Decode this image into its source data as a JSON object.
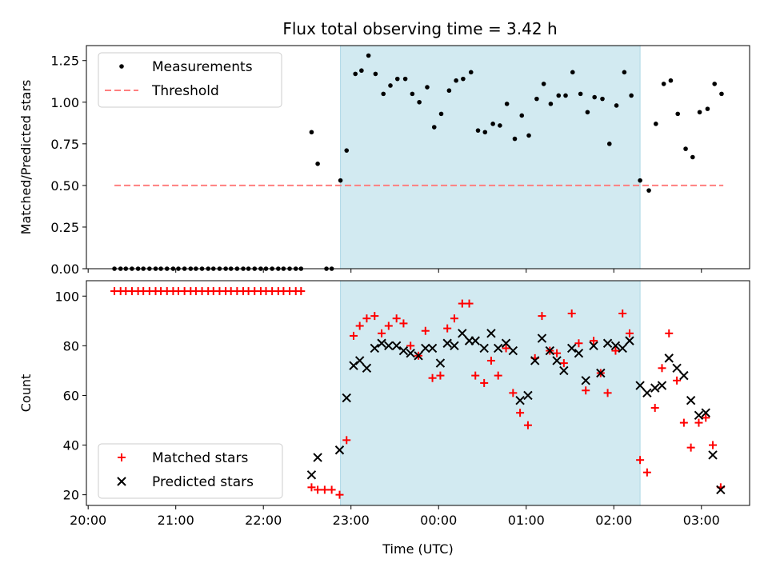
{
  "title": "Flux total observing time = 3.42 h",
  "chart_data": [
    {
      "type": "scatter",
      "panel": "top",
      "ylabel": "Matched/Predicted stars",
      "xlabel": "",
      "ylim": [
        0,
        1.34
      ],
      "y_ticks": [
        0.0,
        0.25,
        0.5,
        0.75,
        1.0,
        1.25
      ],
      "y_tick_labels": [
        "0.00",
        "0.25",
        "0.50",
        "0.75",
        "1.00",
        "1.25"
      ],
      "x_ticks_hours": [
        20,
        21,
        22,
        23,
        24,
        25,
        26,
        27
      ],
      "shaded_interval_hours": [
        22.88,
        26.3
      ],
      "shade_color": "#add8e6",
      "legend": {
        "placement": "top-left",
        "entries": [
          {
            "label": "Measurements",
            "marker": "dot",
            "color": "#000000"
          },
          {
            "label": "Threshold",
            "marker": "dashed-line",
            "color": "#ff7f7f"
          }
        ]
      },
      "threshold": {
        "value": 0.5,
        "x_range_hours": [
          20.3,
          27.25
        ],
        "color": "#ff7f7f"
      },
      "series": [
        {
          "name": "Measurements",
          "color": "#000000",
          "x": [
            20.3,
            20.37,
            20.43,
            20.5,
            20.57,
            20.63,
            20.7,
            20.77,
            20.83,
            20.9,
            20.97,
            21.03,
            21.1,
            21.17,
            21.23,
            21.3,
            21.37,
            21.43,
            21.5,
            21.57,
            21.63,
            21.7,
            21.77,
            21.83,
            21.9,
            21.97,
            22.03,
            22.1,
            22.17,
            22.23,
            22.3,
            22.37,
            22.43,
            22.55,
            22.62,
            22.72,
            22.78,
            22.88,
            22.95,
            23.05,
            23.12,
            23.2,
            23.28,
            23.37,
            23.45,
            23.53,
            23.62,
            23.7,
            23.78,
            23.87,
            23.95,
            24.03,
            24.12,
            24.2,
            24.28,
            24.37,
            24.45,
            24.53,
            24.62,
            24.7,
            24.78,
            24.87,
            24.95,
            25.03,
            25.12,
            25.2,
            25.28,
            25.37,
            25.45,
            25.53,
            25.62,
            25.7,
            25.78,
            25.87,
            25.95,
            26.03,
            26.12,
            26.2,
            26.3,
            26.4,
            26.48,
            26.57,
            26.65,
            26.73,
            26.82,
            26.9,
            26.98,
            27.07,
            27.15,
            27.23
          ],
          "values": [
            0,
            0,
            0,
            0,
            0,
            0,
            0,
            0,
            0,
            0,
            0,
            0,
            0,
            0,
            0,
            0,
            0,
            0,
            0,
            0,
            0,
            0,
            0,
            0,
            0,
            0,
            0,
            0,
            0,
            0,
            0,
            0,
            0,
            0.82,
            0.63,
            0,
            0,
            0.53,
            0.71,
            1.17,
            1.19,
            1.28,
            1.17,
            1.05,
            1.1,
            1.14,
            1.14,
            1.05,
            1.0,
            1.09,
            0.85,
            0.93,
            1.07,
            1.13,
            1.14,
            1.18,
            0.83,
            0.82,
            0.87,
            0.86,
            0.99,
            0.78,
            0.92,
            0.8,
            1.02,
            1.11,
            0.99,
            1.04,
            1.04,
            1.18,
            1.05,
            0.94,
            1.03,
            1.02,
            0.75,
            0.98,
            1.18,
            1.04,
            0.53,
            0.47,
            0.87,
            1.11,
            1.13,
            0.93,
            0.72,
            0.67,
            0.94,
            0.96,
            1.11,
            1.05
          ]
        }
      ]
    },
    {
      "type": "scatter",
      "panel": "bottom",
      "xlabel": "Time (UTC)",
      "ylabel": "Count",
      "ylim": [
        15.7,
        106.2
      ],
      "y_ticks": [
        20,
        40,
        60,
        80,
        100
      ],
      "y_tick_labels": [
        "20",
        "40",
        "60",
        "80",
        "100"
      ],
      "x_ticks_hours": [
        20,
        21,
        22,
        23,
        24,
        25,
        26,
        27
      ],
      "x_tick_labels": [
        "20:00",
        "21:00",
        "22:00",
        "23:00",
        "00:00",
        "01:00",
        "02:00",
        "03:00"
      ],
      "x_range_hours": [
        19.98,
        27.55
      ],
      "shaded_interval_hours": [
        22.88,
        26.3
      ],
      "shade_color": "#add8e6",
      "legend": {
        "placement": "bottom-left",
        "entries": [
          {
            "label": "Matched stars",
            "marker": "plus",
            "color": "#ff0000"
          },
          {
            "label": "Predicted stars",
            "marker": "x",
            "color": "#000000"
          }
        ]
      },
      "series": [
        {
          "name": "Matched stars",
          "color": "#ff0000",
          "marker": "plus",
          "x": [
            20.3,
            20.37,
            20.43,
            20.5,
            20.57,
            20.63,
            20.7,
            20.77,
            20.83,
            20.9,
            20.97,
            21.03,
            21.1,
            21.17,
            21.23,
            21.3,
            21.37,
            21.43,
            21.5,
            21.57,
            21.63,
            21.7,
            21.77,
            21.83,
            21.9,
            21.97,
            22.03,
            22.1,
            22.17,
            22.23,
            22.3,
            22.37,
            22.43,
            22.55,
            22.62,
            22.7,
            22.78,
            22.87,
            22.95,
            23.03,
            23.1,
            23.18,
            23.27,
            23.35,
            23.43,
            23.52,
            23.6,
            23.68,
            23.77,
            23.85,
            23.93,
            24.02,
            24.1,
            24.18,
            24.27,
            24.35,
            24.42,
            24.52,
            24.6,
            24.68,
            24.77,
            24.85,
            24.93,
            25.02,
            25.1,
            25.18,
            25.27,
            25.35,
            25.43,
            25.52,
            25.6,
            25.68,
            25.77,
            25.85,
            25.93,
            26.02,
            26.1,
            26.18,
            26.3,
            26.38,
            26.47,
            26.55,
            26.63,
            26.72,
            26.8,
            26.88,
            26.97,
            27.05,
            27.13,
            27.22
          ],
          "values": [
            102,
            102,
            102,
            102,
            102,
            102,
            102,
            102,
            102,
            102,
            102,
            102,
            102,
            102,
            102,
            102,
            102,
            102,
            102,
            102,
            102,
            102,
            102,
            102,
            102,
            102,
            102,
            102,
            102,
            102,
            102,
            102,
            102,
            23,
            22,
            22,
            22,
            20,
            42,
            84,
            88,
            91,
            92,
            85,
            88,
            91,
            89,
            80,
            76,
            86,
            67,
            68,
            87,
            91,
            97,
            97,
            68,
            65,
            74,
            68,
            79,
            61,
            53,
            48,
            75,
            92,
            78,
            77,
            73,
            93,
            81,
            62,
            82,
            69,
            61,
            78,
            93,
            85,
            34,
            29,
            55,
            71,
            85,
            66,
            49,
            39,
            49,
            51,
            40,
            23
          ]
        },
        {
          "name": "Predicted stars",
          "color": "#000000",
          "marker": "x",
          "x": [
            22.55,
            22.62,
            22.87,
            22.95,
            23.03,
            23.1,
            23.18,
            23.27,
            23.35,
            23.43,
            23.52,
            23.6,
            23.68,
            23.77,
            23.85,
            23.93,
            24.02,
            24.1,
            24.18,
            24.27,
            24.35,
            24.42,
            24.52,
            24.6,
            24.68,
            24.77,
            24.85,
            24.93,
            25.02,
            25.1,
            25.18,
            25.27,
            25.35,
            25.43,
            25.52,
            25.6,
            25.68,
            25.77,
            25.85,
            25.93,
            26.02,
            26.1,
            26.18,
            26.3,
            26.38,
            26.47,
            26.55,
            26.63,
            26.72,
            26.8,
            26.88,
            26.97,
            27.05,
            27.13,
            27.22
          ],
          "values": [
            28,
            35,
            38,
            59,
            72,
            74,
            71,
            79,
            81,
            80,
            80,
            78,
            77,
            76,
            79,
            79,
            73,
            81,
            80,
            85,
            82,
            82,
            79,
            85,
            79,
            81,
            78,
            58,
            60,
            74,
            83,
            78,
            74,
            70,
            79,
            77,
            66,
            80,
            69,
            81,
            80,
            79,
            82,
            64,
            61,
            63,
            64,
            75,
            71,
            68,
            58,
            52,
            53,
            36,
            22
          ]
        }
      ]
    }
  ]
}
